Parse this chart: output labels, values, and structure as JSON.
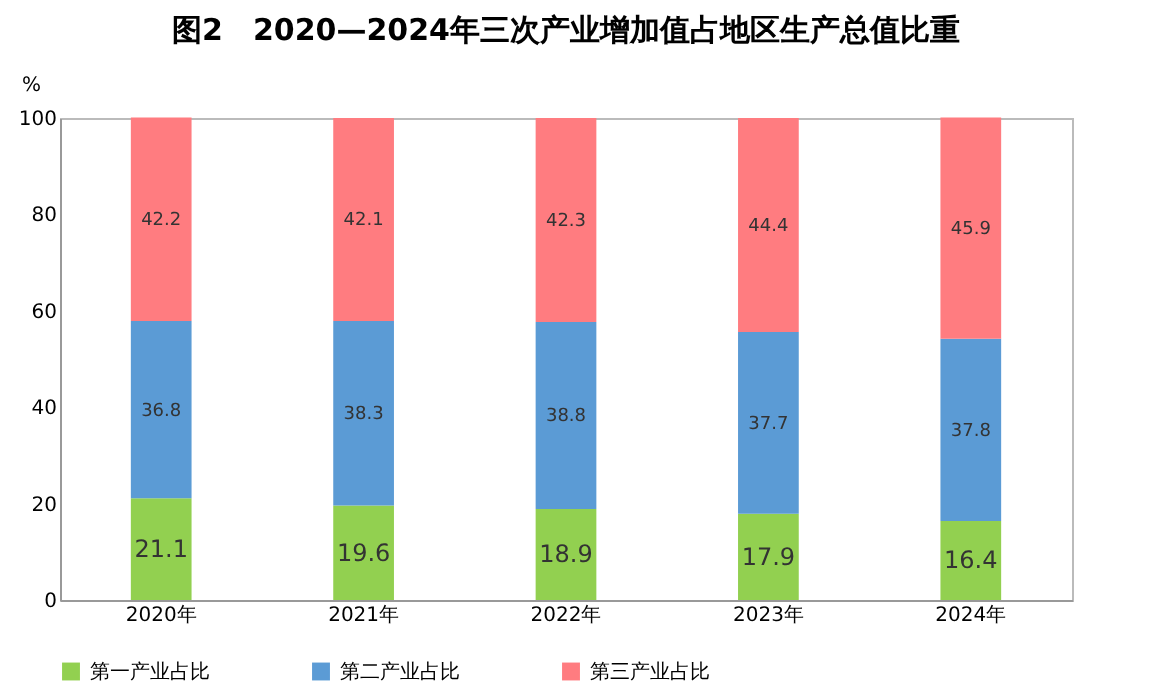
{
  "chart_data": {
    "type": "bar",
    "title": "图2　2020—2024年三次产业增加值占地区生产总值比重",
    "ylabel": "%",
    "categories": [
      "2020年",
      "2021年",
      "2022年",
      "2023年",
      "2024年"
    ],
    "stacked": true,
    "data_labels": true,
    "legend": "bottom",
    "grid": false,
    "ylim": [
      0,
      100
    ],
    "yticks": [
      0,
      20,
      40,
      60,
      80,
      100
    ],
    "series": [
      {
        "name": "第一产业占比",
        "color": "#92d050",
        "values": [
          21.1,
          19.6,
          18.9,
          17.9,
          16.4
        ]
      },
      {
        "name": "第二产业占比",
        "color": "#5b9bd5",
        "values": [
          36.8,
          38.3,
          38.8,
          37.7,
          37.8
        ]
      },
      {
        "name": "第三产业占比",
        "color": "#ff7c80",
        "values": [
          42.2,
          42.1,
          42.3,
          44.4,
          45.9
        ]
      }
    ]
  }
}
